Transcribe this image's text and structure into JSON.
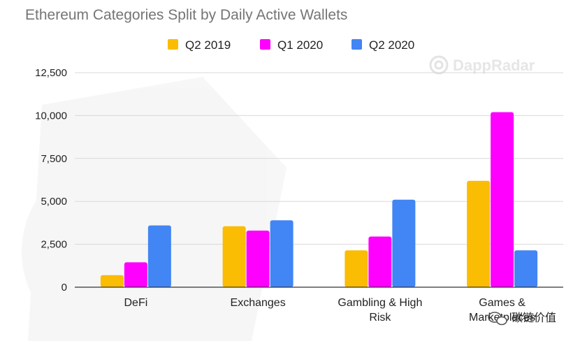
{
  "chart_data": {
    "type": "bar",
    "title": "Ethereum Categories Split by Daily Active Wallets",
    "categories": [
      [
        "DeFi"
      ],
      [
        "Exchanges"
      ],
      [
        "Gambling & High",
        "Risk"
      ],
      [
        "Games &",
        "Marketplaces"
      ]
    ],
    "series": [
      {
        "name": "Q2 2019",
        "color": "#fbbc04",
        "values": [
          700,
          3550,
          2150,
          6200
        ]
      },
      {
        "name": "Q1 2020",
        "color": "#ff00ff",
        "values": [
          1450,
          3300,
          2950,
          10200
        ]
      },
      {
        "name": "Q2 2020",
        "color": "#4285f4",
        "values": [
          3600,
          3900,
          5100,
          2150
        ]
      }
    ],
    "ylim": [
      0,
      12500
    ],
    "yticks": [
      "0",
      "2,500",
      "5,000",
      "7,500",
      "10,000",
      "12,500"
    ],
    "ytick_values": [
      0,
      2500,
      5000,
      7500,
      10000,
      12500
    ],
    "grid": true,
    "legend": "top-center",
    "xlabel": "",
    "ylabel": ""
  },
  "watermark": {
    "brand": "DappRadar",
    "icon": "dappradar-logo-icon"
  },
  "footer": {
    "text": "碳链价值",
    "icon": "wechat-icon"
  }
}
